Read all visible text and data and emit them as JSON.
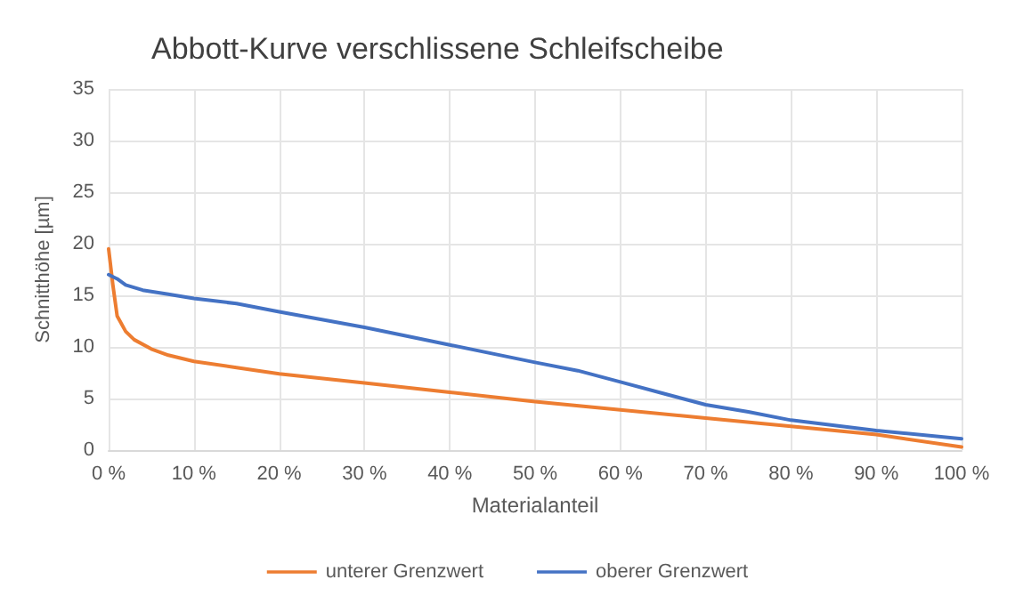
{
  "chart_data": {
    "type": "line",
    "title": "Abbott-Kurve verschlissene Schleifscheibe",
    "xlabel": "Materialanteil",
    "ylabel": "Schnitthöhe [µm]",
    "x": [
      0,
      0.5,
      1,
      2,
      3,
      5,
      7,
      10,
      15,
      20,
      30,
      40,
      50,
      60,
      70,
      80,
      90,
      100
    ],
    "series": [
      {
        "name": "unterer Grenzwert",
        "color": "#ed7d31",
        "values": [
          19.5,
          16,
          13,
          11.5,
          10.7,
          9.8,
          9.2,
          8.6,
          8,
          7.4,
          6.5,
          5.6,
          4.7,
          3.9,
          3.1,
          2.3,
          1.5,
          0.3
        ]
      },
      {
        "name": "oberer Grenzwert",
        "color": "#4472c4",
        "x": [
          0,
          1,
          2,
          4,
          7,
          10,
          15,
          20,
          30,
          40,
          50,
          55,
          60,
          65,
          70,
          75,
          80,
          90,
          100
        ],
        "values": [
          17,
          16.6,
          16,
          15.5,
          15.1,
          14.7,
          14.2,
          13.4,
          11.9,
          10.2,
          8.5,
          7.7,
          6.6,
          5.5,
          4.4,
          3.7,
          2.9,
          1.9,
          1.1
        ]
      }
    ],
    "xlim": [
      0,
      100
    ],
    "xticks": [
      {
        "value": 0,
        "label": "0 %"
      },
      {
        "value": 10,
        "label": "10 %"
      },
      {
        "value": 20,
        "label": "20 %"
      },
      {
        "value": 30,
        "label": "30 %"
      },
      {
        "value": 40,
        "label": "40 %"
      },
      {
        "value": 50,
        "label": "50 %"
      },
      {
        "value": 60,
        "label": "60 %"
      },
      {
        "value": 70,
        "label": "70 %"
      },
      {
        "value": 80,
        "label": "80 %"
      },
      {
        "value": 90,
        "label": "90 %"
      },
      {
        "value": 100,
        "label": "100 %"
      }
    ],
    "ylim": [
      0,
      35
    ],
    "yticks": [
      0,
      5,
      10,
      15,
      20,
      25,
      30,
      35
    ],
    "grid": true,
    "legend": "bottom",
    "marker": "none",
    "line_style": "solid"
  }
}
